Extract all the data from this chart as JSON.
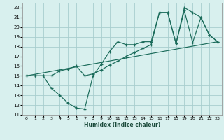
{
  "xlabel": "Humidex (Indice chaleur)",
  "bg_color": "#d8f0ee",
  "line_color": "#1a6b5a",
  "grid_color": "#a8cece",
  "xlim": [
    -0.5,
    23.5
  ],
  "ylim": [
    11,
    22.5
  ],
  "xticks": [
    0,
    1,
    2,
    3,
    4,
    5,
    6,
    7,
    8,
    9,
    10,
    11,
    12,
    13,
    14,
    15,
    16,
    17,
    18,
    19,
    20,
    21,
    22,
    23
  ],
  "yticks": [
    11,
    12,
    13,
    14,
    15,
    16,
    17,
    18,
    19,
    20,
    21,
    22
  ],
  "line1_x": [
    0,
    1,
    2,
    3,
    4,
    5,
    6,
    7,
    8,
    9,
    10,
    11,
    12,
    13,
    14,
    15,
    16,
    17,
    18,
    19,
    20,
    21,
    22,
    23
  ],
  "line1_y": [
    15,
    15,
    15,
    13.7,
    13.0,
    12.2,
    11.7,
    11.6,
    15.0,
    16.2,
    17.5,
    18.5,
    18.2,
    18.2,
    18.5,
    18.5,
    21.5,
    21.5,
    18.3,
    22.0,
    21.5,
    21.0,
    19.2,
    18.5
  ],
  "line2_x": [
    0,
    1,
    2,
    3,
    4,
    5,
    6,
    7,
    8,
    9,
    10,
    11,
    12,
    13,
    14,
    15,
    16,
    17,
    18,
    19,
    20,
    21,
    22,
    23
  ],
  "line2_y": [
    15,
    15,
    15,
    15,
    15.5,
    15.7,
    16.0,
    15.0,
    15.2,
    15.6,
    16.1,
    16.5,
    17.0,
    17.4,
    17.8,
    18.2,
    21.5,
    21.5,
    18.3,
    21.7,
    18.4,
    21.0,
    19.2,
    18.5
  ],
  "line3_x": [
    0,
    23
  ],
  "line3_y": [
    15,
    18.5
  ]
}
